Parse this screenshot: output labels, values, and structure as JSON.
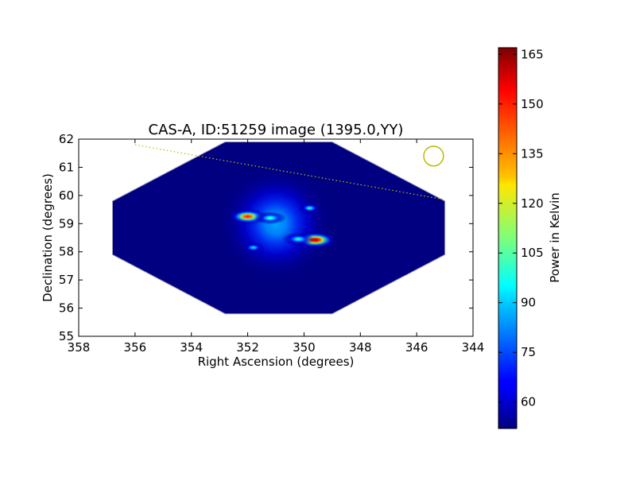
{
  "chart_data": {
    "type": "heatmap",
    "title": "CAS-A, ID:51259 image (1395.0,YY)",
    "xlabel": "Right Ascension (degrees)",
    "ylabel": "Declination (degrees)",
    "xlim": [
      358,
      344
    ],
    "ylim": [
      55,
      62
    ],
    "x_ticks": [
      358,
      356,
      354,
      352,
      350,
      348,
      346,
      344
    ],
    "y_ticks": [
      55,
      56,
      57,
      58,
      59,
      60,
      61,
      62
    ],
    "grid": false,
    "colormap": "jet",
    "colorbar": {
      "label": "Power in Kelvin",
      "range": [
        52,
        167
      ],
      "ticks": [
        60,
        75,
        90,
        105,
        120,
        135,
        150,
        165
      ]
    },
    "background_level": 52,
    "footprint": [
      [
        356.8,
        59.8
      ],
      [
        352.8,
        61.9
      ],
      [
        349.0,
        61.9
      ],
      [
        345.0,
        59.8
      ],
      [
        345.0,
        57.9
      ],
      [
        349.0,
        55.8
      ],
      [
        352.8,
        55.8
      ],
      [
        356.8,
        57.9
      ]
    ],
    "hotspots": [
      {
        "ra": 351.0,
        "dec": 59.0,
        "sx": 1.4,
        "sy": 1.4,
        "amp": 33
      },
      {
        "ra": 352.0,
        "dec": 59.25,
        "sx": 0.45,
        "sy": 0.18,
        "amp": 100
      },
      {
        "ra": 351.2,
        "dec": 59.2,
        "sx": 0.35,
        "sy": 0.14,
        "amp": 50
      },
      {
        "ra": 349.6,
        "dec": 58.42,
        "sx": 0.5,
        "sy": 0.2,
        "amp": 110
      },
      {
        "ra": 350.2,
        "dec": 58.45,
        "sx": 0.35,
        "sy": 0.15,
        "amp": 45
      },
      {
        "ra": 349.8,
        "dec": 59.55,
        "sx": 0.25,
        "sy": 0.12,
        "amp": 45
      },
      {
        "ra": 351.8,
        "dec": 58.15,
        "sx": 0.25,
        "sy": 0.12,
        "amp": 40
      }
    ],
    "overlays": [
      {
        "kind": "dotted-line",
        "color": "#bbbb00",
        "points": [
          [
            356.0,
            61.8
          ],
          [
            345.0,
            59.85
          ]
        ]
      },
      {
        "kind": "circle",
        "color": "#bbbb00",
        "center": [
          345.4,
          61.4
        ],
        "radius_deg": 0.35
      }
    ]
  }
}
